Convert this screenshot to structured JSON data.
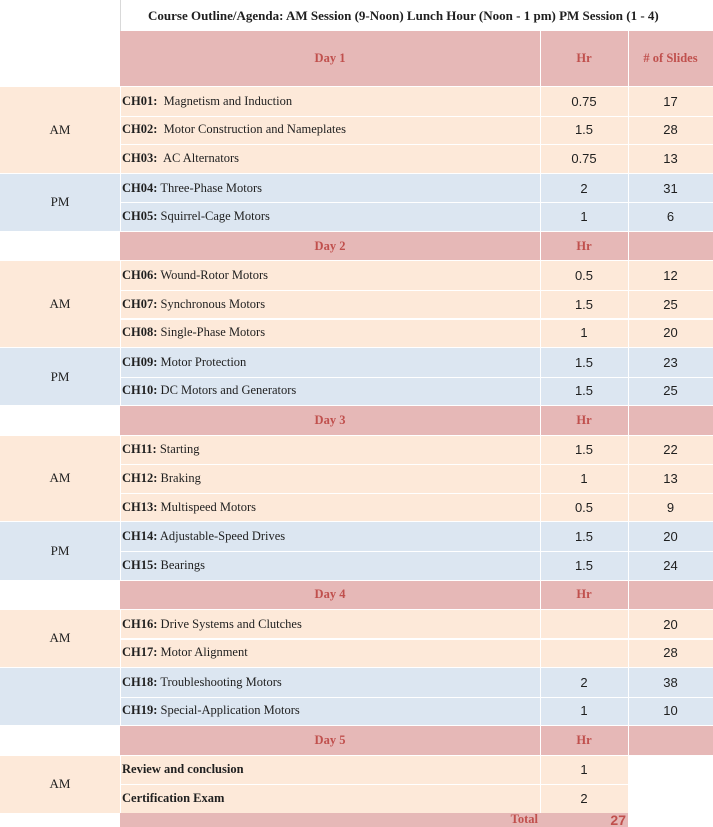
{
  "title": "Course Outline/Agenda:  AM Session (9-Noon)   Lunch Hour (Noon - 1 pm)   PM Session (1 - 4)",
  "colors": {
    "header_bg": "#e6b8b7",
    "header_text": "#c0504d",
    "am_bg": "#fde9d9",
    "pm_bg": "#dce6f1"
  },
  "days": [
    {
      "label": "Day 1",
      "hr_label": "Hr",
      "slides_label": "# of Slides",
      "blocks": [
        {
          "session": "AM",
          "type": "am",
          "rows": [
            {
              "code": "CH01:",
              "name": "  Magnetism and Induction",
              "hr": "0.75",
              "slides": "17"
            },
            {
              "code": "CH02:",
              "name": "  Motor Construction and Nameplates",
              "hr": "1.5",
              "slides": "28"
            },
            {
              "code": "CH03:",
              "name": "  AC Alternators",
              "hr": "0.75",
              "slides": "13"
            }
          ]
        },
        {
          "session": "PM",
          "type": "pm",
          "rows": [
            {
              "code": "CH04:",
              "name": " Three-Phase Motors",
              "hr": "2",
              "slides": "31"
            },
            {
              "code": "CH05:",
              "name": " Squirrel-Cage Motors",
              "hr": "1",
              "slides": "6"
            }
          ]
        }
      ]
    },
    {
      "label": "Day 2",
      "hr_label": "Hr",
      "slides_label": "",
      "blocks": [
        {
          "session": "AM",
          "type": "am",
          "rows": [
            {
              "code": "CH06:",
              "name": " Wound-Rotor Motors",
              "hr": "0.5",
              "slides": "12"
            },
            {
              "code": "CH07:",
              "name": " Synchronous Motors",
              "hr": "1.5",
              "slides": "25"
            },
            {
              "code": "CH08:",
              "name": " Single-Phase Motors",
              "hr": "1",
              "slides": "20"
            }
          ]
        },
        {
          "session": "PM",
          "type": "pm",
          "rows": [
            {
              "code": "CH09:",
              "name": " Motor Protection",
              "hr": "1.5",
              "slides": "23"
            },
            {
              "code": "CH10:",
              "name": " DC Motors and Generators",
              "hr": "1.5",
              "slides": "25"
            }
          ]
        }
      ]
    },
    {
      "label": "Day 3",
      "hr_label": "Hr",
      "slides_label": "",
      "blocks": [
        {
          "session": "AM",
          "type": "am",
          "rows": [
            {
              "code": "CH11:",
              "name": " Starting",
              "hr": "1.5",
              "slides": "22"
            },
            {
              "code": "CH12:",
              "name": " Braking",
              "hr": "1",
              "slides": "13"
            },
            {
              "code": "CH13:",
              "name": " Multispeed Motors",
              "hr": "0.5",
              "slides": "9"
            }
          ]
        },
        {
          "session": "PM",
          "type": "pm",
          "rows": [
            {
              "code": "CH14:",
              "name": " Adjustable-Speed Drives",
              "hr": "1.5",
              "slides": "20"
            },
            {
              "code": "CH15:",
              "name": " Bearings",
              "hr": "1.5",
              "slides": "24"
            }
          ]
        }
      ]
    },
    {
      "label": "Day 4",
      "hr_label": "Hr",
      "slides_label": "",
      "blocks": [
        {
          "session": "AM",
          "type": "am",
          "rows": [
            {
              "code": "CH16:",
              "name": " Drive Systems and Clutches",
              "hr": "",
              "slides": "20"
            },
            {
              "code": "CH17:",
              "name": " Motor Alignment",
              "hr": "",
              "slides": "28"
            }
          ]
        },
        {
          "session": "",
          "type": "pm",
          "rows": [
            {
              "code": "CH18:",
              "name": " Troubleshooting Motors",
              "hr": "2",
              "slides": "38"
            },
            {
              "code": "CH19:",
              "name": " Special-Application Motors",
              "hr": "1",
              "slides": "10"
            }
          ]
        }
      ]
    },
    {
      "label": "Day 5",
      "hr_label": "Hr",
      "slides_label": "",
      "blocks": [
        {
          "session": "AM",
          "type": "am",
          "slides_blank": true,
          "rows": [
            {
              "code": "Review and conclusion",
              "name": "",
              "hr": "1",
              "slides": ""
            },
            {
              "code": "Certification Exam",
              "name": "",
              "hr": "2",
              "slides": ""
            }
          ]
        }
      ]
    }
  ],
  "total": {
    "label": "Total",
    "value": "27"
  }
}
